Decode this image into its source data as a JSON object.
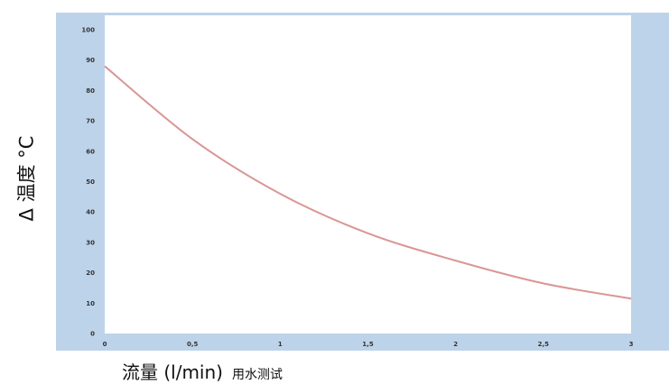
{
  "chart_data": {
    "type": "line",
    "title": "",
    "xlabel": "流量 (l/min)",
    "xlabel_note": "用水测试",
    "ylabel": "Δ 温度 °C",
    "xlim": [
      0,
      3
    ],
    "ylim": [
      0,
      100
    ],
    "x_ticks": [
      "0",
      "0,5",
      "1",
      "1,5",
      "2",
      "2,5",
      "3"
    ],
    "y_ticks": [
      "0",
      "10",
      "20",
      "30",
      "40",
      "50",
      "60",
      "70",
      "80",
      "90",
      "100"
    ],
    "grid": false,
    "legend": "none",
    "series": [
      {
        "x": [
          0,
          0.5,
          1,
          1.5,
          2,
          2.5,
          3
        ],
        "y": [
          88,
          64,
          46,
          33,
          24,
          16.5,
          11.5
        ],
        "color": "#d99694"
      }
    ],
    "colors": {
      "panel": "#bdd3ea",
      "plot_area": "#ffffff",
      "line": "#d99694"
    }
  }
}
